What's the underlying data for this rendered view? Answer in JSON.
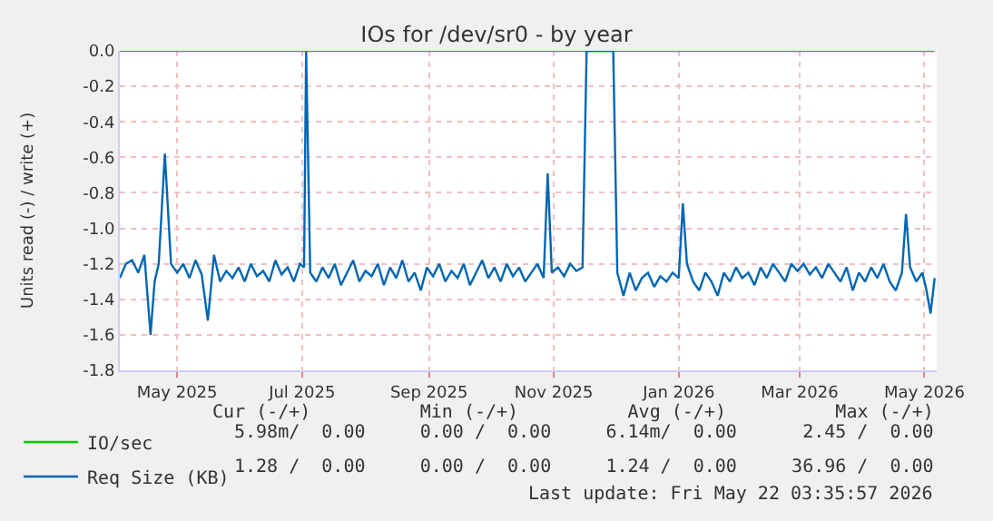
{
  "chart_data": {
    "type": "line",
    "title": "IOs for /dev/sr0 - by year",
    "ylabel": "Units read (-) / write (+)",
    "xlim": [
      "2025-04-03",
      "2026-05-07"
    ],
    "ylim": [
      -1.8,
      0.0
    ],
    "xticks": [
      {
        "value": "2025-05-01",
        "label": "May 2025"
      },
      {
        "value": "2025-07-01",
        "label": "Jul 2025"
      },
      {
        "value": "2025-09-01",
        "label": "Sep 2025"
      },
      {
        "value": "2025-11-01",
        "label": "Nov 2025"
      },
      {
        "value": "2026-01-01",
        "label": "Jan 2026"
      },
      {
        "value": "2026-03-01",
        "label": "Mar 2026"
      },
      {
        "value": "2026-05-01",
        "label": "May 2026"
      }
    ],
    "yticks": [
      {
        "value": 0,
        "label": "0.0"
      },
      {
        "value": -0.2,
        "label": "-0.2"
      },
      {
        "value": -0.4,
        "label": "-0.4"
      },
      {
        "value": -0.6,
        "label": "-0.6"
      },
      {
        "value": -0.8,
        "label": "-0.8"
      },
      {
        "value": -1.0,
        "label": "-1.0"
      },
      {
        "value": -1.2,
        "label": "-1.2"
      },
      {
        "value": -1.4,
        "label": "-1.4"
      },
      {
        "value": -1.6,
        "label": "-1.6"
      },
      {
        "value": -1.8,
        "label": "-1.8"
      }
    ],
    "grid": true,
    "legend": "bottom left",
    "marker": "none",
    "line_style": "solid",
    "annotations": [
      "Cur (-/+)          Min (-/+)          Avg (-/+)          Max (-/+)",
      "5.98m/  0.00     0.00 /  0.00     6.14m/  0.00      2.45 /  0.00",
      "1.28 /  0.00     0.00 /  0.00     1.24 /  0.00     36.96 /  0.00",
      "Last update: Fri May 22 03:35:57 2026"
    ],
    "series": [
      {
        "name": "IO/sec",
        "color": "#00cc00",
        "x": [
          "2025-04-03",
          "2026-05-06"
        ],
        "values": [
          0,
          0
        ]
      },
      {
        "name": "Req Size (KB)",
        "color": "#0066b3",
        "x": [
          "2025-04-03",
          "2025-04-06",
          "2025-04-09",
          "2025-04-12",
          "2025-04-15",
          "2025-04-18",
          "2025-04-20",
          "2025-04-22",
          "2025-04-25",
          "2025-04-28",
          "2025-05-01",
          "2025-05-04",
          "2025-05-07",
          "2025-05-10",
          "2025-05-13",
          "2025-05-16",
          "2025-05-19",
          "2025-05-22",
          "2025-05-25",
          "2025-05-28",
          "2025-05-31",
          "2025-06-03",
          "2025-06-06",
          "2025-06-09",
          "2025-06-12",
          "2025-06-15",
          "2025-06-18",
          "2025-06-21",
          "2025-06-24",
          "2025-06-27",
          "2025-06-30",
          "2025-07-02",
          "2025-07-03",
          "2025-07-05",
          "2025-07-08",
          "2025-07-11",
          "2025-07-14",
          "2025-07-17",
          "2025-07-20",
          "2025-07-23",
          "2025-07-26",
          "2025-07-29",
          "2025-08-01",
          "2025-08-04",
          "2025-08-07",
          "2025-08-10",
          "2025-08-13",
          "2025-08-16",
          "2025-08-19",
          "2025-08-22",
          "2025-08-25",
          "2025-08-28",
          "2025-08-31",
          "2025-09-03",
          "2025-09-06",
          "2025-09-09",
          "2025-09-12",
          "2025-09-15",
          "2025-09-18",
          "2025-09-21",
          "2025-09-24",
          "2025-09-27",
          "2025-09-30",
          "2025-10-03",
          "2025-10-06",
          "2025-10-09",
          "2025-10-12",
          "2025-10-15",
          "2025-10-18",
          "2025-10-21",
          "2025-10-24",
          "2025-10-27",
          "2025-10-29",
          "2025-10-31",
          "2025-11-03",
          "2025-11-06",
          "2025-11-09",
          "2025-11-12",
          "2025-11-15",
          "2025-11-17",
          "2025-11-30",
          "2025-12-02",
          "2025-12-05",
          "2025-12-08",
          "2025-12-11",
          "2025-12-14",
          "2025-12-17",
          "2025-12-20",
          "2025-12-23",
          "2025-12-26",
          "2025-12-29",
          "2026-01-01",
          "2026-01-03",
          "2026-01-05",
          "2026-01-08",
          "2026-01-11",
          "2026-01-14",
          "2026-01-17",
          "2026-01-20",
          "2026-01-23",
          "2026-01-26",
          "2026-01-29",
          "2026-02-01",
          "2026-02-04",
          "2026-02-07",
          "2026-02-10",
          "2026-02-13",
          "2026-02-16",
          "2026-02-19",
          "2026-02-22",
          "2026-02-25",
          "2026-02-28",
          "2026-03-03",
          "2026-03-06",
          "2026-03-09",
          "2026-03-12",
          "2026-03-15",
          "2026-03-18",
          "2026-03-21",
          "2026-03-24",
          "2026-03-27",
          "2026-03-30",
          "2026-04-02",
          "2026-04-05",
          "2026-04-08",
          "2026-04-11",
          "2026-04-14",
          "2026-04-17",
          "2026-04-20",
          "2026-04-22",
          "2026-04-24",
          "2026-04-27",
          "2026-04-30",
          "2026-05-02",
          "2026-05-04",
          "2026-05-06"
        ],
        "values": [
          -1.28,
          -1.2,
          -1.18,
          -1.25,
          -1.15,
          -1.6,
          -1.3,
          -1.2,
          -0.58,
          -1.2,
          -1.25,
          -1.2,
          -1.28,
          -1.18,
          -1.26,
          -1.52,
          -1.15,
          -1.3,
          -1.24,
          -1.28,
          -1.22,
          -1.3,
          -1.2,
          -1.27,
          -1.24,
          -1.3,
          -1.18,
          -1.26,
          -1.22,
          -1.3,
          -1.2,
          -1.22,
          0.0,
          -1.25,
          -1.3,
          -1.22,
          -1.28,
          -1.2,
          -1.32,
          -1.25,
          -1.18,
          -1.3,
          -1.24,
          -1.27,
          -1.2,
          -1.32,
          -1.22,
          -1.28,
          -1.18,
          -1.3,
          -1.25,
          -1.35,
          -1.22,
          -1.27,
          -1.2,
          -1.3,
          -1.24,
          -1.28,
          -1.2,
          -1.32,
          -1.25,
          -1.18,
          -1.28,
          -1.22,
          -1.3,
          -1.2,
          -1.27,
          -1.22,
          -1.3,
          -1.25,
          -1.2,
          -1.28,
          -0.69,
          -1.25,
          -1.22,
          -1.27,
          -1.2,
          -1.24,
          -1.22,
          0.0,
          0.0,
          -1.25,
          -1.38,
          -1.25,
          -1.35,
          -1.28,
          -1.25,
          -1.33,
          -1.27,
          -1.3,
          -1.25,
          -1.28,
          -0.86,
          -1.2,
          -1.3,
          -1.35,
          -1.25,
          -1.3,
          -1.38,
          -1.25,
          -1.3,
          -1.22,
          -1.28,
          -1.25,
          -1.32,
          -1.22,
          -1.28,
          -1.2,
          -1.25,
          -1.3,
          -1.2,
          -1.24,
          -1.2,
          -1.26,
          -1.22,
          -1.28,
          -1.2,
          -1.25,
          -1.3,
          -1.22,
          -1.35,
          -1.25,
          -1.3,
          -1.22,
          -1.28,
          -1.2,
          -1.3,
          -1.35,
          -1.25,
          -0.92,
          -1.22,
          -1.3,
          -1.25,
          -1.35,
          -1.48,
          -1.28
        ]
      }
    ]
  }
}
